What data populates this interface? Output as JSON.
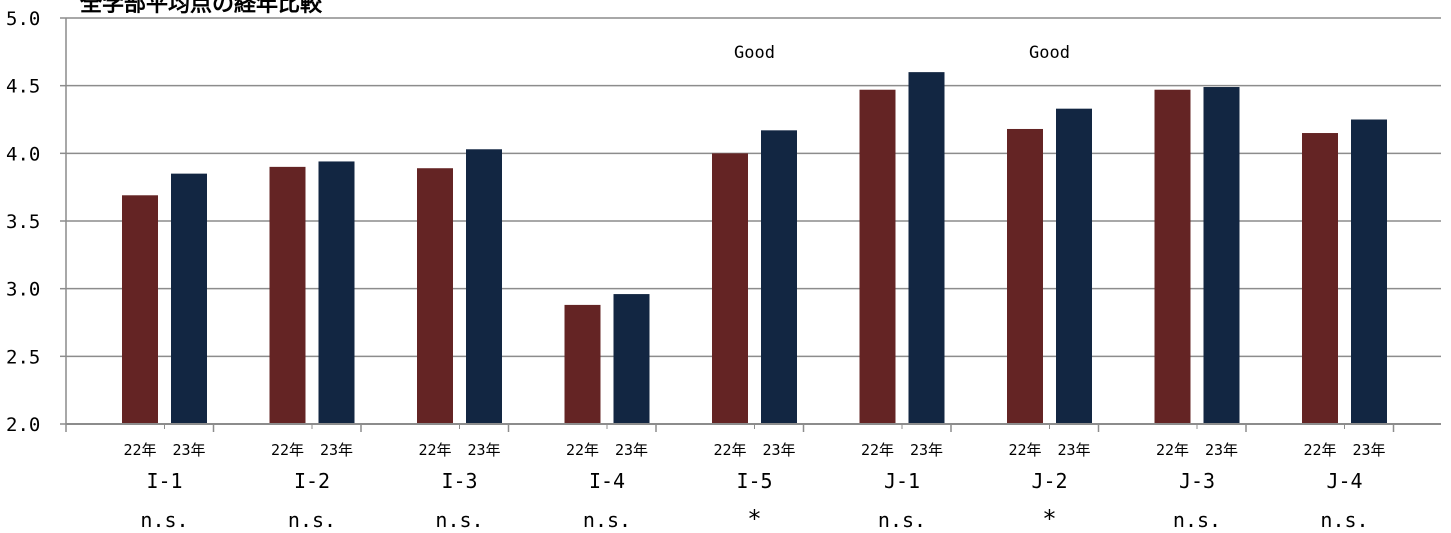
{
  "chart_data": {
    "type": "bar",
    "title": "全学部平均点の経年比較",
    "categories": [
      "I-1",
      "I-2",
      "I-3",
      "I-4",
      "I-5",
      "J-1",
      "J-2",
      "J-3",
      "J-4"
    ],
    "series_labels": [
      "22年",
      "23年"
    ],
    "series": [
      {
        "values": [
          3.69,
          3.9,
          3.89,
          2.88,
          4.0,
          4.47,
          4.18,
          4.47,
          4.15
        ],
        "color": "#642424"
      },
      {
        "values": [
          3.85,
          3.94,
          4.03,
          2.96,
          4.17,
          4.6,
          4.33,
          4.49,
          4.25
        ],
        "color": "#122642"
      }
    ],
    "significance": [
      "n.s.",
      "n.s.",
      "n.s.",
      "n.s.",
      "*",
      "n.s.",
      "*",
      "n.s.",
      "n.s."
    ],
    "annotations": [
      {
        "category": "I-5",
        "text": "Good"
      },
      {
        "category": "J-2",
        "text": "Good"
      }
    ],
    "yticks": [
      "2.0",
      "2.5",
      "3.0",
      "3.5",
      "4.0",
      "4.5",
      "5.0"
    ],
    "ylim": [
      2.0,
      5.0
    ],
    "grid": true,
    "xlabel": "",
    "ylabel": ""
  }
}
